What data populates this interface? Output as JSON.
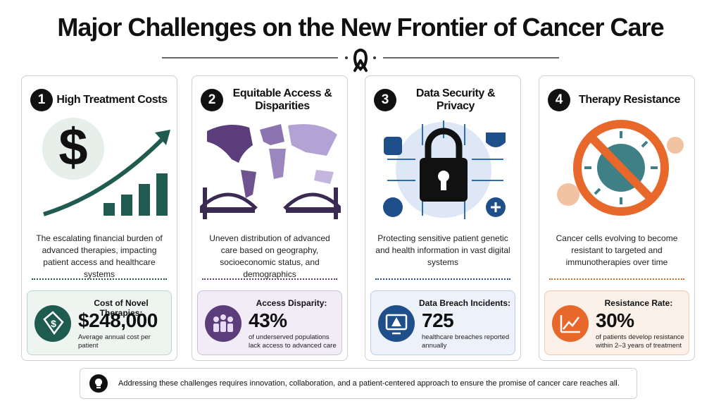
{
  "title": "Major Challenges on the New Frontier of Cancer Care",
  "cards": [
    {
      "number": "1",
      "title": "High Treatment Costs",
      "icon_symbol": "$",
      "description": "The escalating financial burden of advanced therapies, impacting patient access and healthcare systems",
      "stat_label": "Cost of Novel Therapies:",
      "stat_value": "$248,000",
      "stat_caption": "Average annual cost per patient"
    },
    {
      "number": "2",
      "title": "Equitable Access & Disparities",
      "description": "Uneven distribution of advanced care based on geography, socioeconomic status, and demographics",
      "stat_label": "Access Disparity:",
      "stat_value": "43%",
      "stat_caption": "of underserved populations lack access to advanced care"
    },
    {
      "number": "3",
      "title": "Data Security & Privacy",
      "description": "Protecting sensitive patient genetic and health information in vast digital systems",
      "stat_label": "Data Breach Incidents:",
      "stat_value": "725",
      "stat_caption": "healthcare breaches reported annually"
    },
    {
      "number": "4",
      "title": "Therapy Resistance",
      "description": "Cancer cells evolving to become resistant to targeted and immunotherapies over time",
      "stat_label": "Resistance Rate:",
      "stat_value": "30%",
      "stat_caption": "of patients develop resistance within 2–3 years of treatment"
    }
  ],
  "footer": "Addressing these challenges requires innovation, collaboration, and a patient-centered approach to ensure the promise of cancer care reaches all."
}
